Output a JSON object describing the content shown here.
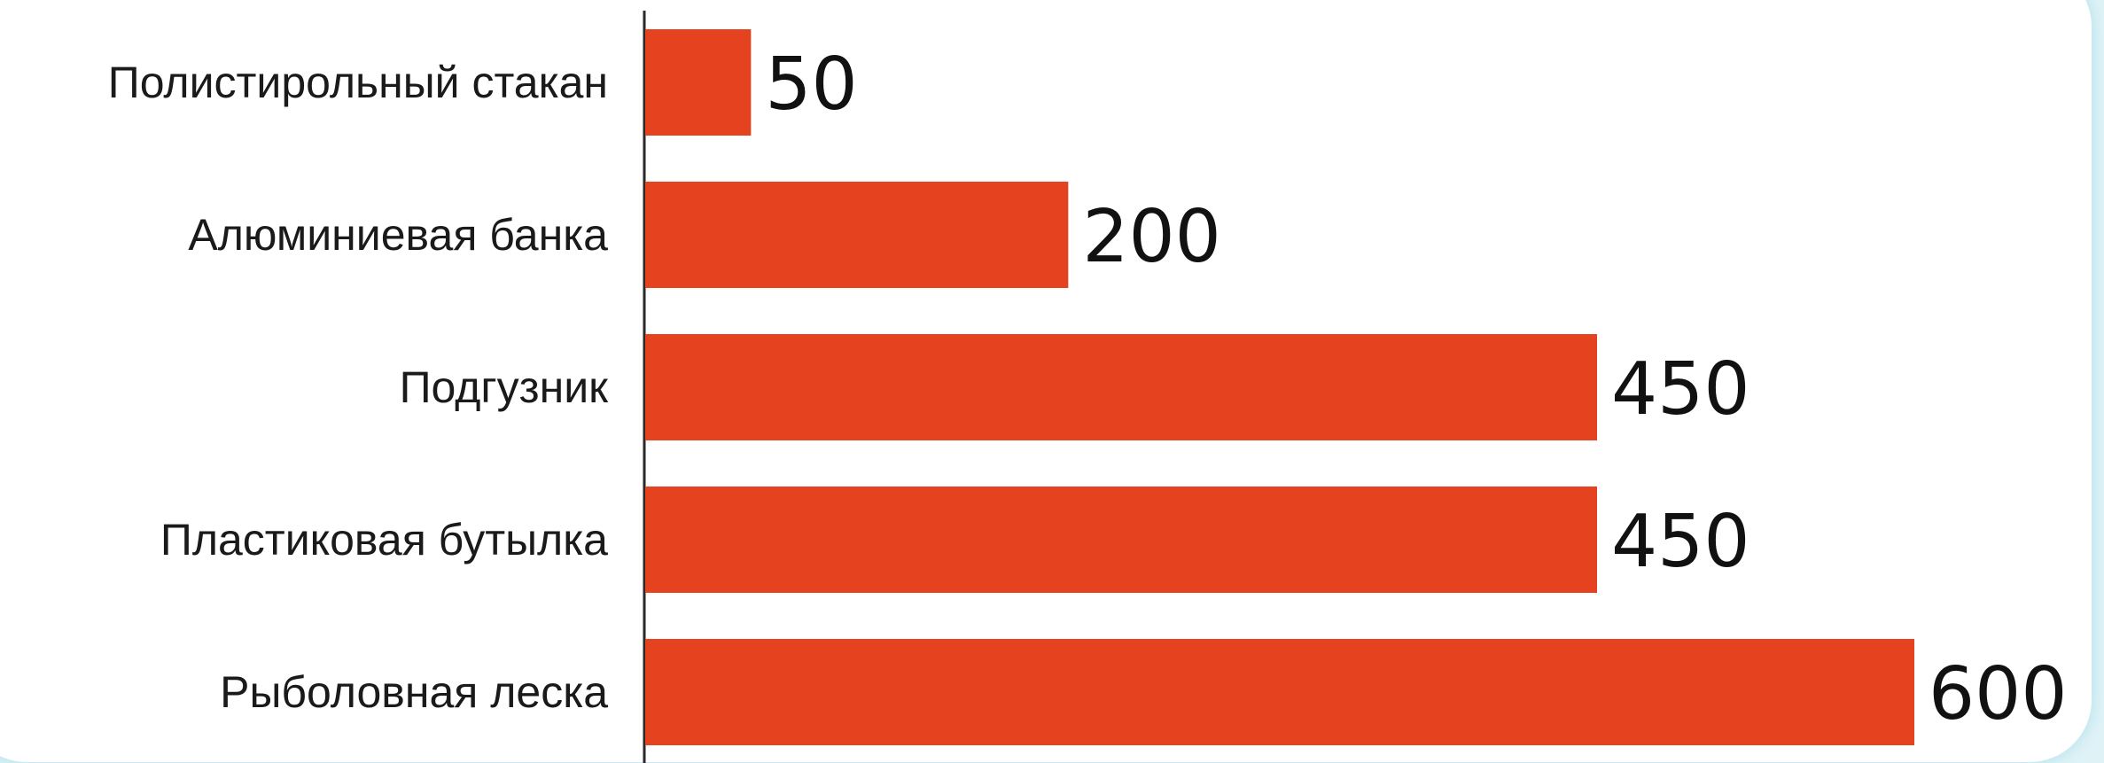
{
  "chart_data": {
    "type": "bar",
    "orientation": "horizontal",
    "categories": [
      "Полистирольный стакан",
      "Алюминиевая банка",
      "Подгузник",
      "Пластиковая бутылка",
      "Рыболовная леска"
    ],
    "values": [
      50,
      200,
      450,
      450,
      600
    ],
    "data_labels": [
      "50",
      "200",
      "450",
      "450",
      "600"
    ],
    "bar_color": "#e5421f",
    "xlim": [
      0,
      600
    ],
    "grid": false,
    "legend": "none",
    "title": "",
    "xlabel": "",
    "ylabel": ""
  }
}
